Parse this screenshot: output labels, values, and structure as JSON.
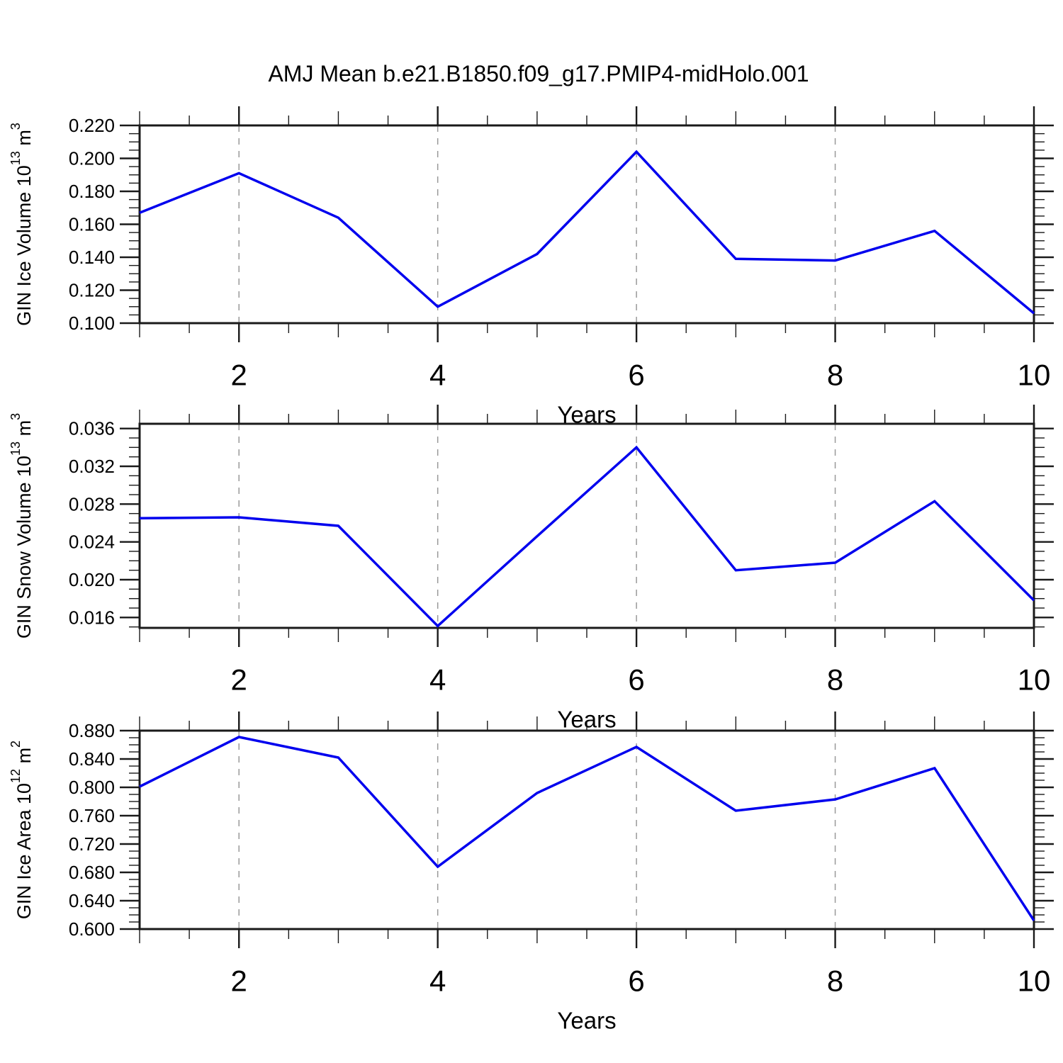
{
  "title": "AMJ Mean b.e21.B1850.f09_g17.PMIP4-midHolo.001",
  "colors": {
    "line": "#0000EE",
    "axis": "#1A1A1A",
    "grid": "#999999",
    "label": "#000000",
    "background": "#FFFFFF"
  },
  "x_axis": {
    "label": "Years",
    "range": [
      1,
      10
    ],
    "major_ticks": [
      2,
      4,
      6,
      8,
      10
    ],
    "gridlines": [
      2,
      4,
      6,
      8
    ]
  },
  "chart_data": [
    {
      "type": "line",
      "name": "gin-ice-volume",
      "ylabel_parts": [
        {
          "text": "GIN Ice Volume 10"
        },
        {
          "text": "13",
          "sup": true
        },
        {
          "text": " m"
        },
        {
          "text": "3",
          "sup": true
        }
      ],
      "xlabel": "Years",
      "x": [
        1,
        2,
        3,
        4,
        5,
        6,
        7,
        8,
        9,
        10
      ],
      "values": [
        0.167,
        0.191,
        0.164,
        0.11,
        0.142,
        0.204,
        0.139,
        0.138,
        0.156,
        0.106
      ],
      "ylim": [
        0.1,
        0.22
      ],
      "yticks": [
        0.1,
        0.12,
        0.14,
        0.16,
        0.18,
        0.2,
        0.22
      ],
      "minor_step": 0.005,
      "ytick_decimals": 3
    },
    {
      "type": "line",
      "name": "gin-snow-volume",
      "ylabel_parts": [
        {
          "text": "GIN Snow Volume 10"
        },
        {
          "text": "13",
          "sup": true
        },
        {
          "text": " m"
        },
        {
          "text": "3",
          "sup": true
        }
      ],
      "xlabel": "Years",
      "x": [
        1,
        2,
        3,
        4,
        5,
        6,
        7,
        8,
        9,
        10
      ],
      "values": [
        0.0265,
        0.0266,
        0.0257,
        0.0151,
        0.0246,
        0.034,
        0.021,
        0.0218,
        0.0283,
        0.0178
      ],
      "ylim": [
        0.0149,
        0.0365
      ],
      "yticks": [
        0.016,
        0.02,
        0.024,
        0.028,
        0.032,
        0.036
      ],
      "minor_step": 0.001,
      "ytick_decimals": 3
    },
    {
      "type": "line",
      "name": "gin-ice-area",
      "ylabel_parts": [
        {
          "text": "GIN Ice Area 10"
        },
        {
          "text": "12",
          "sup": true
        },
        {
          "text": " m"
        },
        {
          "text": "2",
          "sup": true
        }
      ],
      "xlabel": "Years",
      "x": [
        1,
        2,
        3,
        4,
        5,
        6,
        7,
        8,
        9,
        10
      ],
      "values": [
        0.801,
        0.871,
        0.842,
        0.688,
        0.792,
        0.857,
        0.767,
        0.783,
        0.827,
        0.612
      ],
      "ylim": [
        0.6,
        0.88
      ],
      "yticks": [
        0.6,
        0.64,
        0.68,
        0.72,
        0.76,
        0.8,
        0.84,
        0.88
      ],
      "minor_step": 0.01,
      "ytick_decimals": 3
    }
  ]
}
